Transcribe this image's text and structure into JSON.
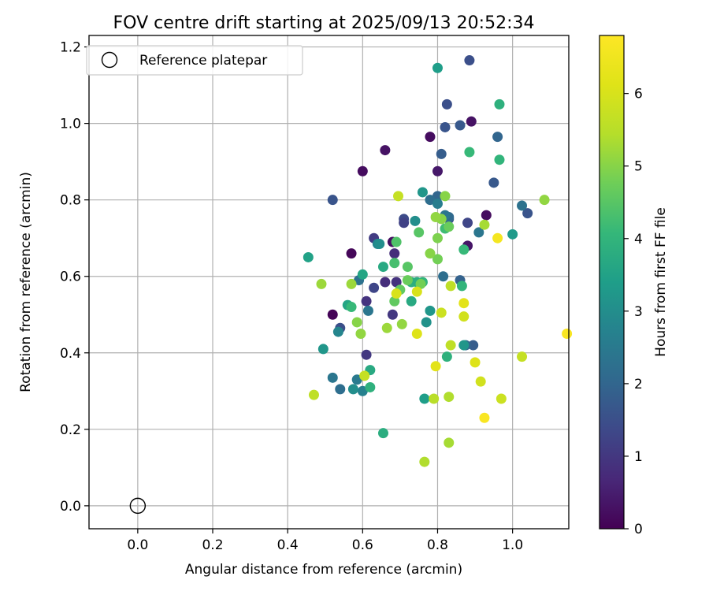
{
  "chart_data": {
    "type": "scatter",
    "title": "FOV centre drift starting at 2025/09/13 20:52:34",
    "xlabel": "Angular distance from reference (arcmin)",
    "ylabel": "Rotation from reference (arcmin)",
    "xlim": [
      -0.13,
      1.15
    ],
    "ylim": [
      -0.06,
      1.23
    ],
    "xticks": [
      0.0,
      0.2,
      0.4,
      0.6,
      0.8,
      1.0
    ],
    "xtick_labels": [
      "0.0",
      "0.2",
      "0.4",
      "0.6",
      "0.8",
      "1.0"
    ],
    "yticks": [
      0.0,
      0.2,
      0.4,
      0.6,
      0.8,
      1.0,
      1.2
    ],
    "ytick_labels": [
      "0.0",
      "0.2",
      "0.4",
      "0.6",
      "0.8",
      "1.0",
      "1.2"
    ],
    "grid": true,
    "legend": {
      "position": "top-left",
      "label": "Reference platepar"
    },
    "reference_point": {
      "x": 0.0,
      "y": 0.0
    },
    "colorbar": {
      "label": "Hours from first FF file",
      "colormap": "viridis",
      "range": [
        0,
        6.8
      ],
      "ticks": [
        0,
        1,
        2,
        3,
        4,
        5,
        6
      ],
      "tick_labels": [
        "0",
        "1",
        "2",
        "3",
        "4",
        "5",
        "6"
      ]
    },
    "points": [
      [
        0.52,
        0.5,
        0.05
      ],
      [
        0.57,
        0.66,
        0.1
      ],
      [
        0.6,
        0.875,
        0.2
      ],
      [
        0.66,
        0.93,
        0.3
      ],
      [
        0.68,
        0.69,
        0.25
      ],
      [
        0.78,
        0.965,
        0.2
      ],
      [
        0.8,
        0.875,
        0.4
      ],
      [
        0.89,
        1.005,
        0.3
      ],
      [
        0.93,
        0.76,
        0.2
      ],
      [
        0.88,
        0.68,
        0.35
      ],
      [
        0.61,
        0.535,
        0.9
      ],
      [
        0.61,
        0.395,
        1.0
      ],
      [
        0.66,
        0.585,
        0.8
      ],
      [
        0.69,
        0.585,
        0.9
      ],
      [
        0.68,
        0.5,
        1.0
      ],
      [
        0.685,
        0.66,
        0.8
      ],
      [
        0.63,
        0.7,
        1.1
      ],
      [
        0.63,
        0.57,
        1.3
      ],
      [
        0.54,
        0.465,
        1.5
      ],
      [
        0.52,
        0.8,
        1.6
      ],
      [
        0.71,
        0.75,
        1.4
      ],
      [
        0.71,
        0.74,
        1.2
      ],
      [
        0.82,
        0.99,
        1.6
      ],
      [
        0.825,
        1.05,
        1.5
      ],
      [
        0.86,
        0.995,
        1.7
      ],
      [
        0.885,
        1.165,
        1.5
      ],
      [
        0.95,
        0.845,
        1.7
      ],
      [
        0.88,
        0.74,
        1.3
      ],
      [
        0.83,
        0.75,
        1.6
      ],
      [
        1.04,
        0.765,
        1.6
      ],
      [
        0.895,
        0.42,
        1.8
      ],
      [
        0.875,
        0.42,
        2.0
      ],
      [
        0.86,
        0.59,
        1.9
      ],
      [
        0.81,
        0.92,
        1.8
      ],
      [
        0.815,
        0.6,
        2.2
      ],
      [
        0.8,
        0.81,
        2.0
      ],
      [
        0.78,
        0.8,
        2.2
      ],
      [
        0.8,
        0.79,
        2.6
      ],
      [
        0.83,
        0.755,
        2.1
      ],
      [
        0.82,
        0.76,
        2.4
      ],
      [
        0.96,
        0.965,
        2.0
      ],
      [
        1.025,
        0.785,
        2.3
      ],
      [
        0.91,
        0.715,
        2.4
      ],
      [
        0.52,
        0.335,
        2.4
      ],
      [
        0.54,
        0.305,
        2.2
      ],
      [
        0.585,
        0.33,
        2.5
      ],
      [
        0.6,
        0.3,
        2.7
      ],
      [
        0.615,
        0.51,
        2.4
      ],
      [
        0.59,
        0.59,
        2.3
      ],
      [
        0.64,
        0.685,
        2.8
      ],
      [
        0.535,
        0.455,
        2.8
      ],
      [
        0.575,
        0.305,
        3.0
      ],
      [
        0.645,
        0.685,
        3.0
      ],
      [
        0.76,
        0.82,
        3.2
      ],
      [
        0.74,
        0.745,
        3.0
      ],
      [
        0.78,
        0.51,
        3.2
      ],
      [
        0.77,
        0.48,
        3.1
      ],
      [
        0.765,
        0.28,
        3.4
      ],
      [
        0.87,
        0.42,
        3.2
      ],
      [
        1.0,
        0.71,
        3.3
      ],
      [
        0.8,
        1.145,
        3.4
      ],
      [
        0.495,
        0.41,
        3.2
      ],
      [
        0.455,
        0.65,
        3.5
      ],
      [
        0.56,
        0.525,
        3.6
      ],
      [
        0.62,
        0.355,
        3.7
      ],
      [
        0.6,
        0.605,
        3.6
      ],
      [
        0.655,
        0.625,
        3.7
      ],
      [
        0.655,
        0.19,
        3.8
      ],
      [
        0.62,
        0.31,
        3.9
      ],
      [
        0.73,
        0.585,
        3.9
      ],
      [
        0.745,
        0.585,
        3.8
      ],
      [
        0.73,
        0.535,
        3.7
      ],
      [
        0.76,
        0.585,
        4.0
      ],
      [
        0.825,
        0.39,
        3.9
      ],
      [
        0.865,
        0.575,
        4.0
      ],
      [
        0.87,
        0.67,
        4.1
      ],
      [
        0.82,
        0.725,
        4.2
      ],
      [
        0.885,
        0.925,
        4.1
      ],
      [
        0.965,
        1.05,
        3.9
      ],
      [
        0.965,
        0.905,
        4.0
      ],
      [
        0.57,
        0.52,
        4.1
      ],
      [
        0.685,
        0.635,
        4.3
      ],
      [
        0.69,
        0.69,
        4.4
      ],
      [
        0.72,
        0.625,
        4.5
      ],
      [
        0.75,
        0.715,
        4.5
      ],
      [
        0.7,
        0.565,
        4.6
      ],
      [
        0.685,
        0.535,
        4.6
      ],
      [
        0.72,
        0.59,
        4.7
      ],
      [
        0.755,
        0.58,
        4.8
      ],
      [
        0.8,
        0.645,
        4.8
      ],
      [
        0.8,
        0.7,
        4.9
      ],
      [
        0.83,
        0.73,
        4.7
      ],
      [
        0.81,
        0.75,
        5.0
      ],
      [
        0.82,
        0.81,
        5.0
      ],
      [
        0.78,
        0.66,
        5.0
      ],
      [
        0.795,
        0.755,
        5.1
      ],
      [
        0.585,
        0.48,
        5.0
      ],
      [
        0.595,
        0.45,
        5.1
      ],
      [
        0.57,
        0.58,
        5.2
      ],
      [
        0.49,
        0.58,
        5.2
      ],
      [
        0.665,
        0.465,
        5.2
      ],
      [
        0.705,
        0.475,
        5.1
      ],
      [
        1.085,
        0.8,
        5.1
      ],
      [
        0.925,
        0.735,
        5.3
      ],
      [
        0.83,
        0.165,
        5.3
      ],
      [
        0.765,
        0.115,
        5.4
      ],
      [
        0.83,
        0.285,
        5.4
      ],
      [
        0.79,
        0.28,
        5.5
      ],
      [
        0.47,
        0.29,
        5.6
      ],
      [
        0.605,
        0.34,
        5.7
      ],
      [
        0.835,
        0.42,
        5.6
      ],
      [
        0.835,
        0.575,
        5.6
      ],
      [
        0.81,
        0.505,
        5.8
      ],
      [
        0.87,
        0.495,
        5.9
      ],
      [
        0.695,
        0.81,
        5.7
      ],
      [
        1.025,
        0.39,
        5.7
      ],
      [
        0.97,
        0.28,
        5.8
      ],
      [
        0.915,
        0.325,
        5.9
      ],
      [
        0.745,
        0.45,
        6.1
      ],
      [
        0.745,
        0.56,
        6.0
      ],
      [
        0.69,
        0.555,
        6.0
      ],
      [
        0.87,
        0.53,
        6.2
      ],
      [
        0.795,
        0.365,
        6.2
      ],
      [
        0.9,
        0.375,
        6.1
      ],
      [
        0.925,
        0.23,
        6.7
      ],
      [
        0.96,
        0.7,
        6.6
      ],
      [
        1.145,
        0.45,
        6.7
      ]
    ]
  }
}
